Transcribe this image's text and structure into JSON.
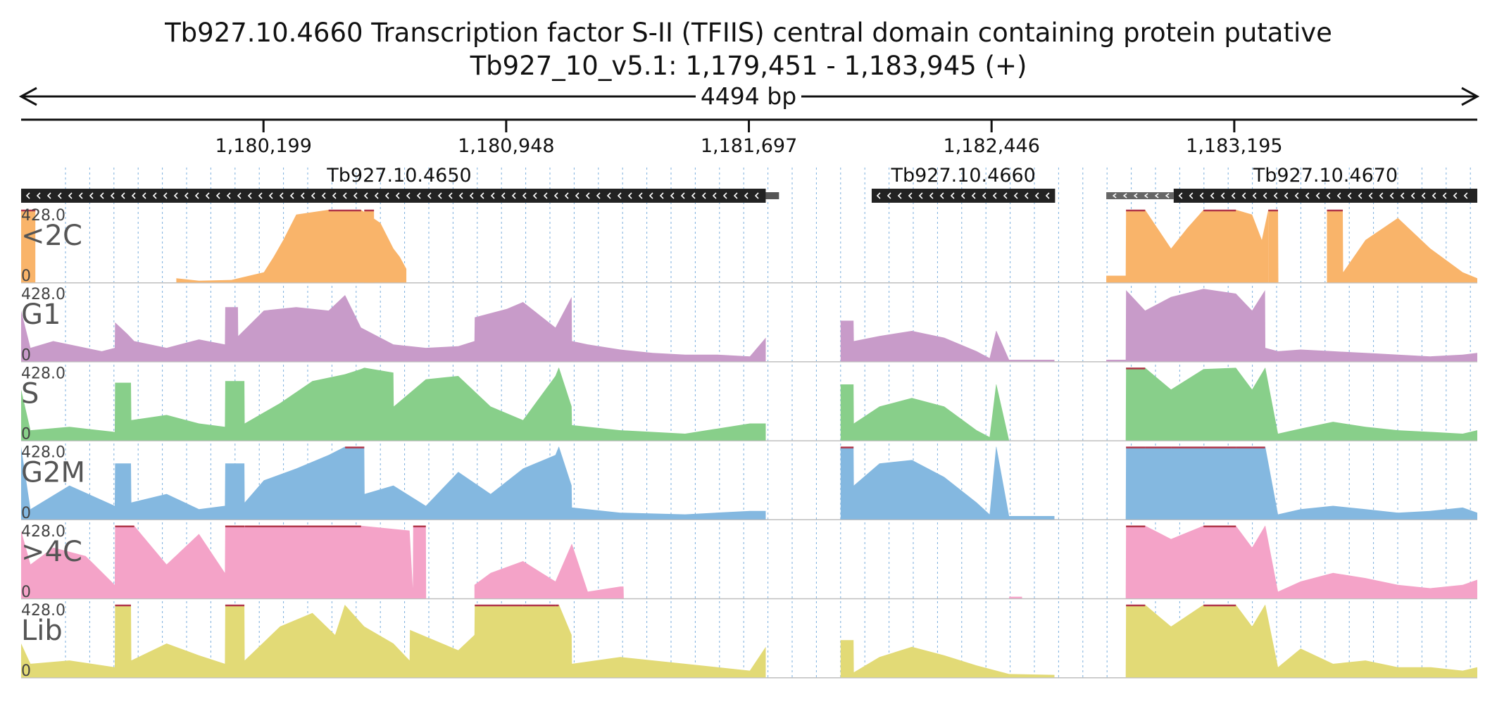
{
  "header": {
    "title": "Tb927.10.4660  Transcription factor S-II (TFIIS)  central domain containing protein  putative",
    "location": "Tb927_10_v5.1: 1,179,451 - 1,183,945 (+)",
    "span_label": "4494 bp"
  },
  "region": {
    "start": 1179451,
    "end": 1183945
  },
  "ruler": {
    "ticks": [
      {
        "pos": 1180199,
        "label": "1,180,199"
      },
      {
        "pos": 1180948,
        "label": "1,180,948"
      },
      {
        "pos": 1181697,
        "label": "1,181,697"
      },
      {
        "pos": 1182446,
        "label": "1,182,446"
      },
      {
        "pos": 1183195,
        "label": "1,183,195"
      }
    ]
  },
  "genes": [
    {
      "name": "Tb927.10.4650",
      "strand": "-",
      "start": 1179451,
      "end": 1181749,
      "utr_end": 1181790
    },
    {
      "name": "Tb927.10.4660",
      "strand": "-",
      "start": 1182076,
      "end": 1182642,
      "utr_end": 1182642
    },
    {
      "name": "Tb927.10.4670",
      "strand": "-",
      "start": 1183008,
      "end": 1183945,
      "utr_start": 1182800
    }
  ],
  "chart_data": {
    "type": "area",
    "ylim": [
      0,
      428.0
    ],
    "y_max_label": "428.0",
    "y_min_label": "0",
    "x_range": [
      1179451,
      1183945
    ],
    "tracks": [
      {
        "name": "<2C",
        "color": "#f9b46a",
        "segments": [
          {
            "x": [
              1179451,
              1179495
            ],
            "y": [
              428,
              428
            ]
          },
          {
            "x": [
              1179930,
              1180000,
              1180100,
              1180200,
              1180230,
              1180260,
              1180300,
              1180400,
              1180500,
              1180560,
              1180600,
              1180620,
              1180640
            ],
            "y": [
              25,
              10,
              15,
              60,
              150,
              250,
              400,
              428,
              428,
              350,
              200,
              150,
              80
            ]
          },
          {
            "x": [
              1180510,
              1180540,
              1180541,
              1180555
            ],
            "y": [
              428,
              428,
              0,
              0
            ]
          },
          {
            "x": [
              1182800,
              1182860,
              1182861,
              1182920,
              1183000,
              1183050,
              1183100,
              1183200,
              1183250,
              1183280,
              1183300
            ],
            "y": [
              40,
              40,
              428,
              428,
              200,
              320,
              428,
              428,
              400,
              250,
              428
            ]
          },
          {
            "x": [
              1183300,
              1183330,
              1183331,
              1183340,
              1183380,
              1183400,
              1183430,
              1183481
            ],
            "y": [
              428,
              428,
              0,
              0,
              0,
              0,
              0,
              0
            ]
          },
          {
            "x": [
              1183481,
              1183530,
              1183531,
              1183600,
              1183700,
              1183800,
              1183900,
              1183945
            ],
            "y": [
              428,
              428,
              60,
              250,
              380,
              200,
              60,
              25
            ]
          }
        ]
      },
      {
        "name": "G1",
        "color": "#c89bc9",
        "segments": [
          {
            "x": [
              1179451,
              1179480,
              1179550,
              1179700,
              1179740,
              1179741,
              1179780,
              1179800,
              1179900,
              1180000,
              1180080,
              1180081,
              1180120,
              1180121,
              1180200,
              1180300,
              1180400,
              1180450,
              1180451,
              1180500,
              1180600,
              1180700,
              1180800,
              1180850,
              1180851,
              1180950,
              1181000,
              1181100,
              1181150,
              1181151,
              1181200,
              1181300,
              1181400,
              1181500,
              1181600,
              1181700,
              1181749
            ],
            "y": [
              300,
              80,
              120,
              60,
              80,
              230,
              160,
              120,
              80,
              130,
              100,
              320,
              320,
              150,
              300,
              320,
              300,
              390,
              390,
              200,
              100,
              80,
              90,
              120,
              260,
              310,
              350,
              200,
              380,
              120,
              100,
              70,
              50,
              40,
              40,
              30,
              140
            ]
          },
          {
            "x": [
              1181980,
              1182020,
              1182021,
              1182100,
              1182200,
              1182300,
              1182400,
              1182440,
              1182460,
              1182461,
              1182500,
              1182640
            ],
            "y": [
              240,
              240,
              120,
              150,
              180,
              140,
              60,
              20,
              180,
              180,
              10,
              10
            ]
          },
          {
            "x": [
              1182800,
              1182860,
              1182861,
              1182920,
              1183000,
              1183100,
              1183200,
              1183250,
              1183290,
              1183291,
              1183330,
              1183400,
              1183500,
              1183600,
              1183700,
              1183800,
              1183900,
              1183945
            ],
            "y": [
              10,
              10,
              420,
              300,
              380,
              428,
              400,
              300,
              420,
              80,
              60,
              70,
              60,
              50,
              40,
              30,
              40,
              50
            ]
          }
        ]
      },
      {
        "name": "S",
        "color": "#88cf8a",
        "segments": [
          {
            "x": [
              1179451,
              1179480,
              1179600,
              1179740,
              1179741,
              1179790,
              1179791,
              1179900,
              1180000,
              1180080,
              1180081,
              1180140,
              1180141,
              1180250,
              1180350,
              1180450,
              1180500,
              1180510,
              1180511,
              1180600,
              1180601,
              1180700,
              1180800,
              1180900,
              1181000,
              1181100,
              1181110,
              1181111,
              1181150,
              1181151,
              1181300,
              1181500,
              1181700,
              1181749
            ],
            "y": [
              300,
              60,
              80,
              50,
              340,
              340,
              120,
              150,
              100,
              80,
              350,
              350,
              100,
              220,
              350,
              390,
              420,
              428,
              428,
              400,
              200,
              360,
              380,
              200,
              120,
              380,
              428,
              428,
              200,
              90,
              60,
              40,
              100,
              100
            ]
          },
          {
            "x": [
              1181980,
              1182020,
              1182021,
              1182100,
              1182200,
              1182300,
              1182400,
              1182440,
              1182460,
              1182461,
              1182500
            ],
            "y": [
              330,
              330,
              100,
              200,
              250,
              200,
              60,
              20,
              330,
              330,
              0
            ]
          },
          {
            "x": [
              1182860,
              1182861,
              1182920,
              1183000,
              1183100,
              1183200,
              1183250,
              1183290,
              1183291,
              1183330,
              1183400,
              1183500,
              1183600,
              1183700,
              1183800,
              1183900,
              1183945
            ],
            "y": [
              0,
              428,
              428,
              300,
              420,
              428,
              300,
              428,
              428,
              40,
              70,
              110,
              80,
              60,
              50,
              40,
              60
            ]
          }
        ]
      },
      {
        "name": "G2M",
        "color": "#84b8e0",
        "segments": [
          {
            "x": [
              1179451,
              1179480,
              1179600,
              1179740,
              1179741,
              1179790,
              1179791,
              1179900,
              1180000,
              1180080,
              1180081,
              1180140,
              1180141,
              1180200,
              1180300,
              1180400,
              1180450,
              1180451,
              1180510,
              1180511,
              1180600,
              1180700,
              1180800,
              1180900,
              1181000,
              1181100,
              1181110,
              1181111,
              1181150,
              1181151,
              1181300,
              1181500,
              1181700,
              1181749
            ],
            "y": [
              428,
              60,
              200,
              80,
              330,
              330,
              100,
              150,
              60,
              80,
              330,
              330,
              100,
              230,
              300,
              380,
              428,
              428,
              428,
              150,
              200,
              80,
              280,
              150,
              300,
              380,
              428,
              428,
              200,
              70,
              40,
              30,
              50,
              50
            ]
          },
          {
            "x": [
              1181980,
              1182020,
              1182021,
              1182100,
              1182200,
              1182300,
              1182400,
              1182440,
              1182460,
              1182461,
              1182500,
              1182640
            ],
            "y": [
              428,
              428,
              200,
              330,
              350,
              250,
              100,
              30,
              428,
              428,
              20,
              20
            ]
          },
          {
            "x": [
              1182860,
              1182861,
              1182920,
              1183000,
              1183100,
              1183200,
              1183250,
              1183290,
              1183291,
              1183330,
              1183400,
              1183500,
              1183600,
              1183700,
              1183800,
              1183900,
              1183945
            ],
            "y": [
              0,
              428,
              428,
              428,
              428,
              428,
              428,
              428,
              428,
              30,
              60,
              80,
              60,
              40,
              50,
              70,
              40
            ]
          }
        ]
      },
      {
        "name": ">4C",
        "color": "#f4a3c8",
        "segments": [
          {
            "x": [
              1179451,
              1179480,
              1179550,
              1179650,
              1179740,
              1179741,
              1179800,
              1179900,
              1180000,
              1180080,
              1180081,
              1180140,
              1180141,
              1180500,
              1180650,
              1180660,
              1180661,
              1180700,
              1180701
            ],
            "y": [
              400,
              200,
              300,
              250,
              80,
              428,
              428,
              200,
              380,
              150,
              428,
              428,
              428,
              428,
              400,
              60,
              428,
              428,
              0
            ]
          },
          {
            "x": [
              1180850,
              1180900,
              1181000,
              1181100,
              1181150,
              1181151,
              1181200,
              1181300,
              1181310,
              1181311,
              1181350
            ],
            "y": [
              80,
              150,
              220,
              100,
              320,
              320,
              40,
              70,
              70,
              0,
              0
            ]
          },
          {
            "x": [
              1182500,
              1182540
            ],
            "y": [
              10,
              10
            ]
          },
          {
            "x": [
              1182860,
              1182861,
              1182920,
              1183000,
              1183100,
              1183200,
              1183250,
              1183290,
              1183291,
              1183330,
              1183400,
              1183500,
              1183600,
              1183700,
              1183800,
              1183900,
              1183945
            ],
            "y": [
              0,
              428,
              428,
              350,
              428,
              428,
              300,
              428,
              428,
              40,
              100,
              150,
              120,
              80,
              60,
              80,
              110
            ]
          }
        ]
      },
      {
        "name": "Lib",
        "color": "#e2da76",
        "segments": [
          {
            "x": [
              1179451,
              1179480,
              1179600,
              1179740,
              1179741,
              1179790,
              1179791,
              1179900,
              1180000,
              1180080,
              1180081,
              1180140,
              1180141,
              1180250,
              1180350,
              1180420,
              1180450,
              1180510,
              1180600,
              1180650,
              1180651,
              1180800,
              1180850,
              1180851,
              1181000,
              1181100,
              1181110,
              1181111,
              1181150,
              1181151,
              1181300,
              1181500,
              1181600,
              1181700,
              1181749
            ],
            "y": [
              200,
              80,
              100,
              60,
              428,
              428,
              100,
              200,
              130,
              80,
              428,
              428,
              100,
              300,
              380,
              250,
              428,
              300,
              200,
              100,
              280,
              160,
              250,
              428,
              428,
              428,
              428,
              428,
              250,
              80,
              120,
              80,
              60,
              40,
              180
            ]
          },
          {
            "x": [
              1181980,
              1182020,
              1182021,
              1182100,
              1182200,
              1182300,
              1182400,
              1182500,
              1182640
            ],
            "y": [
              220,
              220,
              30,
              120,
              180,
              130,
              70,
              20,
              15
            ]
          },
          {
            "x": [
              1182860,
              1182861,
              1182920,
              1183000,
              1183100,
              1183200,
              1183250,
              1183290,
              1183291,
              1183330,
              1183400,
              1183500,
              1183600,
              1183700,
              1183800,
              1183900,
              1183945
            ],
            "y": [
              0,
              428,
              428,
              300,
              428,
              428,
              300,
              428,
              428,
              60,
              170,
              80,
              100,
              60,
              60,
              40,
              60
            ]
          }
        ]
      }
    ]
  }
}
